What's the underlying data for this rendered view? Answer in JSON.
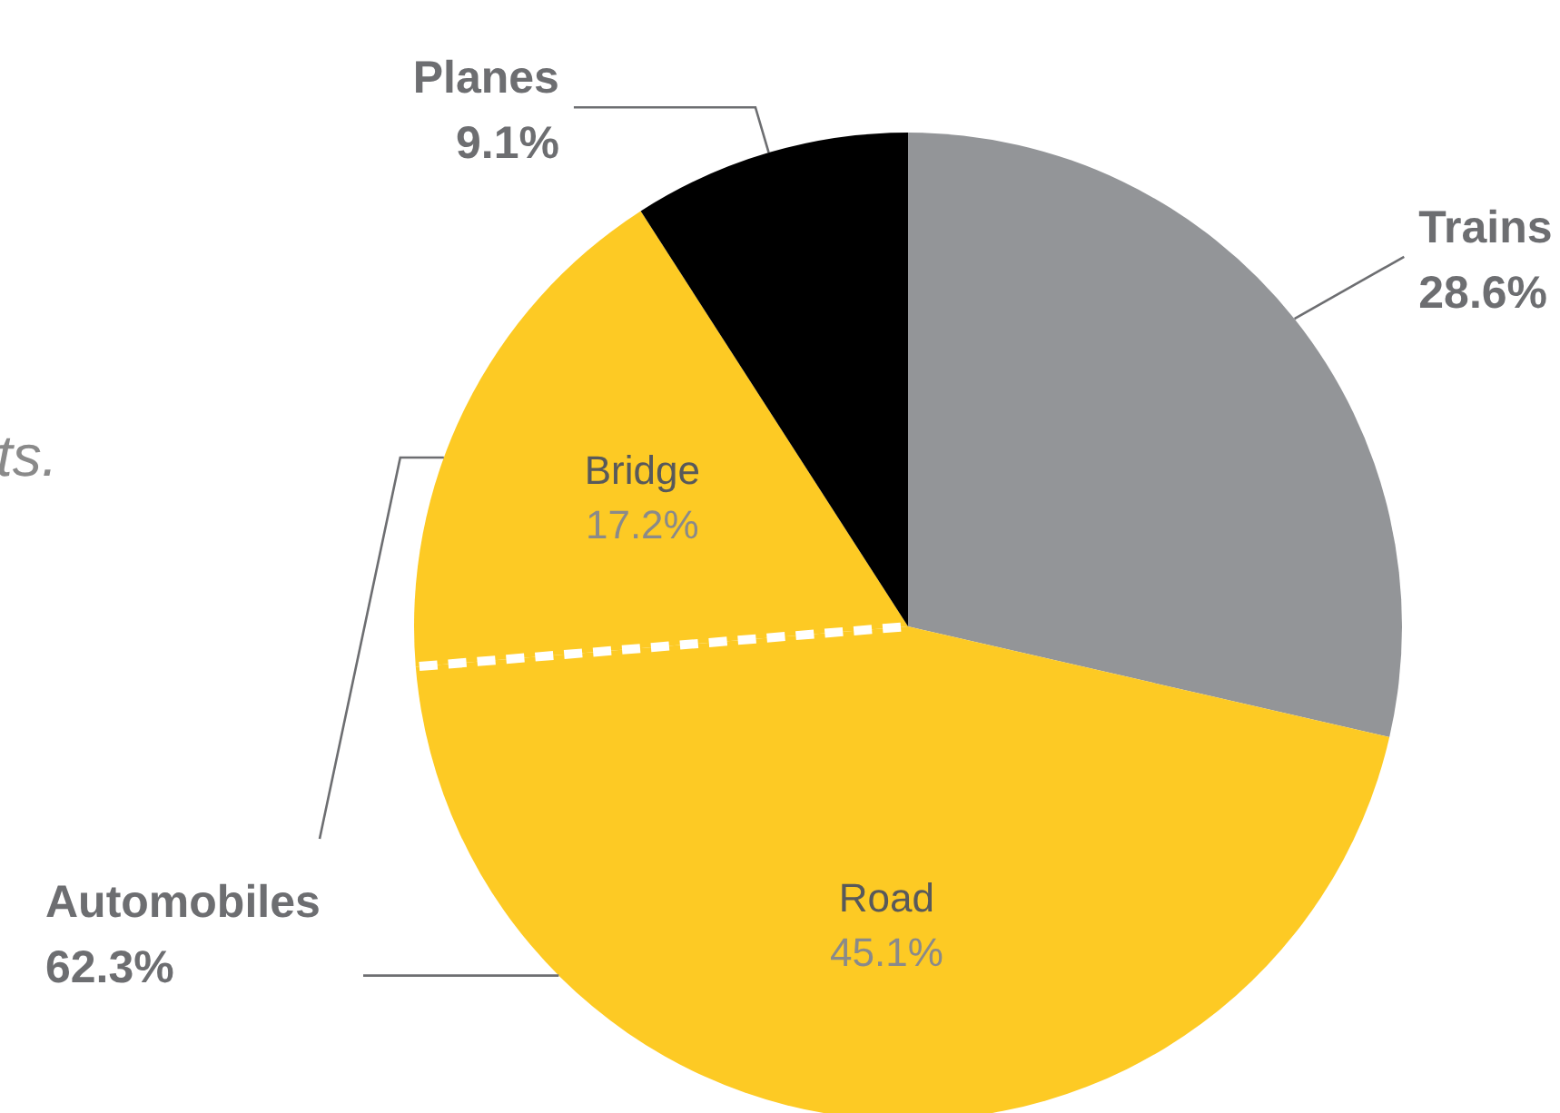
{
  "chart_data": {
    "type": "pie",
    "categories": [
      "Trains",
      "Road",
      "Bridge",
      "Planes"
    ],
    "values": [
      28.6,
      45.1,
      17.2,
      9.1
    ],
    "colors": [
      "#939598",
      "#fdca24",
      "#fdca24",
      "#000000"
    ],
    "value_labels": [
      "28.6%",
      "45.1%",
      "17.2%",
      "9.1%"
    ],
    "annotations": [
      "ts.",
      "Automobiles 62.3%"
    ]
  }
}
